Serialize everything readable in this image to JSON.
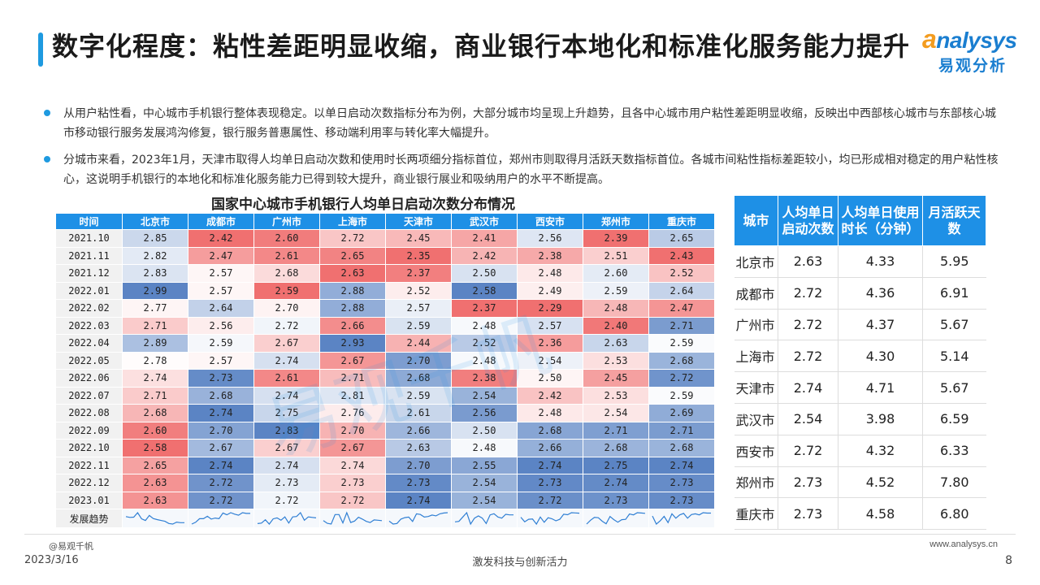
{
  "title": "数字化程度：粘性差距明显收缩，商业银行本地化和标准化服务能力提升",
  "logo": {
    "brand_prefix": "a",
    "brand_rest": "nalysys",
    "cn": "易观分析"
  },
  "bullets": [
    "从用户粘性看，中心城市手机银行整体表现稳定。以单日启动次数指标分布为例，大部分城市均呈现上升趋势，且各中心城市用户粘性差距明显收缩，反映出中西部核心城市与东部核心城市移动银行服务发展鸿沟修复，银行服务普惠属性、移动端利用率与转化率大幅提升。",
    "分城市来看，2023年1月，天津市取得人均单日启动次数和使用时长两项细分指标首位，郑州市则取得月活跃天数指标首位。各城市间粘性指标差距较小，均已形成相对稳定的用户粘性核心，这说明手机银行的本地化和标准化服务能力已得到较大提升，商业银行展业和吸纳用户的水平不断提高。"
  ],
  "chart_data": [
    {
      "type": "heatmap",
      "title": "国家中心城市手机银行人均单日启动次数分布情况",
      "time_header": "时间",
      "trend_label": "发展趋势",
      "cities": [
        "北京市",
        "成都市",
        "广州市",
        "上海市",
        "天津市",
        "武汉市",
        "西安市",
        "郑州市",
        "重庆市"
      ],
      "months": [
        "2021.10",
        "2021.11",
        "2021.12",
        "2022.01",
        "2022.02",
        "2022.03",
        "2022.04",
        "2022.05",
        "2022.06",
        "2022.07",
        "2022.08",
        "2022.09",
        "2022.10",
        "2022.11",
        "2022.12",
        "2023.01"
      ],
      "values": [
        [
          2.85,
          2.42,
          2.6,
          2.72,
          2.45,
          2.41,
          2.56,
          2.39,
          2.65
        ],
        [
          2.82,
          2.47,
          2.61,
          2.65,
          2.35,
          2.42,
          2.38,
          2.51,
          2.43
        ],
        [
          2.83,
          2.57,
          2.68,
          2.63,
          2.37,
          2.5,
          2.48,
          2.6,
          2.52
        ],
        [
          2.99,
          2.57,
          2.59,
          2.88,
          2.52,
          2.58,
          2.49,
          2.59,
          2.64
        ],
        [
          2.77,
          2.64,
          2.7,
          2.88,
          2.57,
          2.37,
          2.29,
          2.48,
          2.47
        ],
        [
          2.71,
          2.56,
          2.72,
          2.66,
          2.59,
          2.48,
          2.57,
          2.4,
          2.71
        ],
        [
          2.89,
          2.59,
          2.67,
          2.93,
          2.44,
          2.52,
          2.36,
          2.63,
          2.59
        ],
        [
          2.78,
          2.57,
          2.74,
          2.67,
          2.7,
          2.48,
          2.54,
          2.53,
          2.68
        ],
        [
          2.74,
          2.73,
          2.61,
          2.71,
          2.68,
          2.38,
          2.5,
          2.45,
          2.72
        ],
        [
          2.71,
          2.68,
          2.74,
          2.81,
          2.59,
          2.54,
          2.42,
          2.53,
          2.59
        ],
        [
          2.68,
          2.74,
          2.75,
          2.76,
          2.61,
          2.56,
          2.48,
          2.54,
          2.69
        ],
        [
          2.6,
          2.7,
          2.83,
          2.7,
          2.66,
          2.5,
          2.68,
          2.71,
          2.71
        ],
        [
          2.58,
          2.67,
          2.67,
          2.67,
          2.63,
          2.48,
          2.66,
          2.68,
          2.68
        ],
        [
          2.65,
          2.74,
          2.74,
          2.74,
          2.7,
          2.55,
          2.74,
          2.75,
          2.74
        ],
        [
          2.63,
          2.72,
          2.73,
          2.73,
          2.73,
          2.54,
          2.73,
          2.74,
          2.73
        ],
        [
          2.63,
          2.72,
          2.72,
          2.72,
          2.74,
          2.54,
          2.72,
          2.73,
          2.73
        ]
      ]
    },
    {
      "type": "table",
      "headers": [
        "城市",
        "人均单日启动次数",
        "人均单日使用时长（分钟）",
        "月活跃天数"
      ],
      "rows": [
        [
          "北京市",
          "2.63",
          "4.33",
          "5.95"
        ],
        [
          "成都市",
          "2.72",
          "4.36",
          "6.91"
        ],
        [
          "广州市",
          "2.72",
          "4.37",
          "5.67"
        ],
        [
          "上海市",
          "2.72",
          "4.30",
          "5.14"
        ],
        [
          "天津市",
          "2.74",
          "4.71",
          "5.67"
        ],
        [
          "武汉市",
          "2.54",
          "3.98",
          "6.59"
        ],
        [
          "西安市",
          "2.72",
          "4.32",
          "6.33"
        ],
        [
          "郑州市",
          "2.73",
          "4.52",
          "7.80"
        ],
        [
          "重庆市",
          "2.73",
          "4.58",
          "6.80"
        ]
      ]
    }
  ],
  "colors": {
    "accent": "#1e90e6",
    "high": "#5b84c4",
    "low": "#f07070",
    "mid": "#ffffff"
  },
  "footer": {
    "source": "@易观千帆",
    "website": "www.analysys.cn",
    "date": "2023/3/16",
    "slogan": "激发科技与创新活力",
    "page": "8"
  }
}
